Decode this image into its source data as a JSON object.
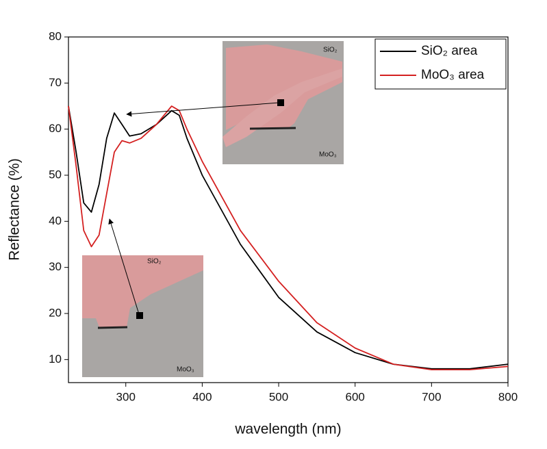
{
  "chart_data": {
    "type": "line",
    "xlabel": "wavelength (nm)",
    "ylabel": "Reflectance (%)",
    "xlim": [
      225,
      800
    ],
    "ylim": [
      5,
      80
    ],
    "xticks": [
      300,
      400,
      500,
      600,
      700,
      800
    ],
    "yticks": [
      10,
      20,
      30,
      40,
      50,
      60,
      70,
      80
    ],
    "x": [
      225,
      235,
      245,
      255,
      265,
      275,
      285,
      295,
      305,
      320,
      340,
      360,
      370,
      380,
      400,
      450,
      500,
      550,
      600,
      650,
      700,
      750,
      800
    ],
    "series": [
      {
        "name": "SiO₂ area",
        "color": "#000000",
        "values": [
          65,
          55,
          44,
          42,
          48,
          58,
          63.5,
          61,
          58.5,
          59,
          61,
          64,
          63,
          58,
          50,
          35,
          23.5,
          16,
          11.5,
          9,
          8,
          8,
          9
        ]
      },
      {
        "name": "MoO₃ area",
        "color": "#d42020",
        "values": [
          65,
          52,
          38,
          34.5,
          37,
          46,
          55,
          57.5,
          57,
          58,
          61,
          65,
          64,
          60,
          53,
          38,
          27,
          18,
          12.5,
          9,
          7.8,
          7.8,
          8.5
        ]
      }
    ],
    "legend": "upper right",
    "annotations": [
      "SiO₂",
      "MoO₃",
      "SiO₂",
      "MoO₃"
    ]
  }
}
